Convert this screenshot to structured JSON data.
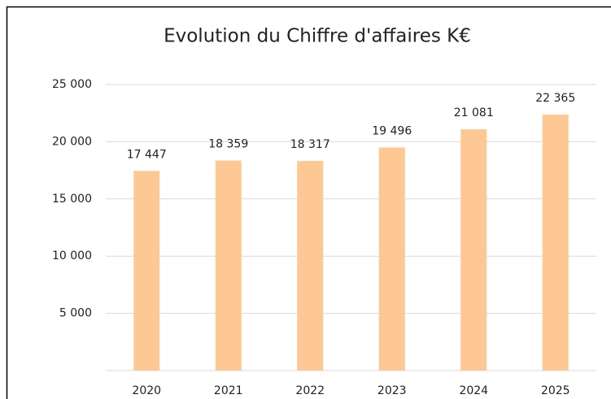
{
  "chart_data": {
    "type": "bar",
    "title": "Evolution du Chiffre d'affaires K€",
    "categories": [
      "2020",
      "2021",
      "2022",
      "2023",
      "2024",
      "2025"
    ],
    "values": [
      17447,
      18359,
      18317,
      19496,
      21081,
      22365
    ],
    "value_labels": [
      "17 447",
      "18 359",
      "18 317",
      "19 496",
      "21 081",
      "22 365"
    ],
    "color": "#fdc893",
    "ylim": [
      0,
      25000
    ],
    "yticks": [
      {
        "value": 5000,
        "label": "5 000"
      },
      {
        "value": 10000,
        "label": "10 000"
      },
      {
        "value": 15000,
        "label": "15 000"
      },
      {
        "value": 20000,
        "label": "20 000"
      },
      {
        "value": 25000,
        "label": "25 000"
      }
    ],
    "grid": true
  }
}
